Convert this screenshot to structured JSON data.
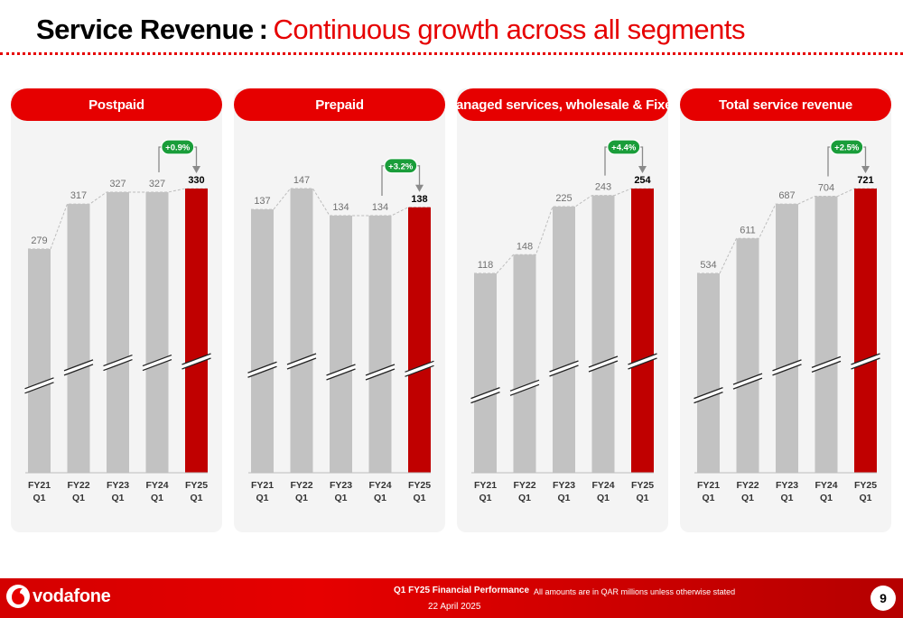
{
  "header": {
    "title_main": "Service Revenue",
    "separator": ":",
    "title_sub": "Continuous growth across all segments"
  },
  "colors": {
    "accent": "#e60000",
    "bar_grey": "#c2c2c2",
    "bar_highlight": "#c00000",
    "badge_green": "#1a9d3a"
  },
  "chart_data": [
    {
      "type": "bar",
      "title": "Postpaid",
      "categories": [
        "FY21\nQ1",
        "FY22\nQ1",
        "FY23\nQ1",
        "FY24\nQ1",
        "FY25\nQ1"
      ],
      "values": [
        279,
        317,
        327,
        327,
        330
      ],
      "value_labels": [
        "279",
        "317",
        "327",
        "327",
        "330"
      ],
      "highlight_index": 4,
      "annotation": "+0.9%",
      "broken_axis": true
    },
    {
      "type": "bar",
      "title": "Prepaid",
      "categories": [
        "FY21\nQ1",
        "FY22\nQ1",
        "FY23\nQ1",
        "FY24\nQ1",
        "FY25\nQ1"
      ],
      "values": [
        137,
        147,
        134,
        134,
        138
      ],
      "value_labels": [
        "137",
        "147",
        "134",
        "134",
        "138"
      ],
      "highlight_index": 4,
      "annotation": "+3.2%",
      "broken_axis": true
    },
    {
      "type": "bar",
      "title": "Managed services, wholesale & Fixed",
      "categories": [
        "FY21\nQ1",
        "FY22\nQ1",
        "FY23\nQ1",
        "FY24\nQ1",
        "FY25\nQ1"
      ],
      "values": [
        118,
        148,
        225,
        243,
        254
      ],
      "value_labels": [
        "118",
        "148",
        "225",
        "243",
        "254"
      ],
      "highlight_index": 4,
      "annotation": "+4.4%",
      "broken_axis": true
    },
    {
      "type": "bar",
      "title": "Total service revenue",
      "categories": [
        "FY21\nQ1",
        "FY22\nQ1",
        "FY23\nQ1",
        "FY24\nQ1",
        "FY25\nQ1"
      ],
      "values": [
        534,
        611,
        687,
        704,
        721
      ],
      "value_labels": [
        "534",
        "611",
        "687",
        "704",
        "721"
      ],
      "highlight_index": 4,
      "annotation": "+2.5%",
      "broken_axis": true
    }
  ],
  "footer": {
    "brand": "vodafone",
    "report": "Q1 FY25 Financial Performance",
    "date": "22 April 2025",
    "note": "All amounts are in QAR millions unless otherwise stated",
    "page": "9"
  }
}
